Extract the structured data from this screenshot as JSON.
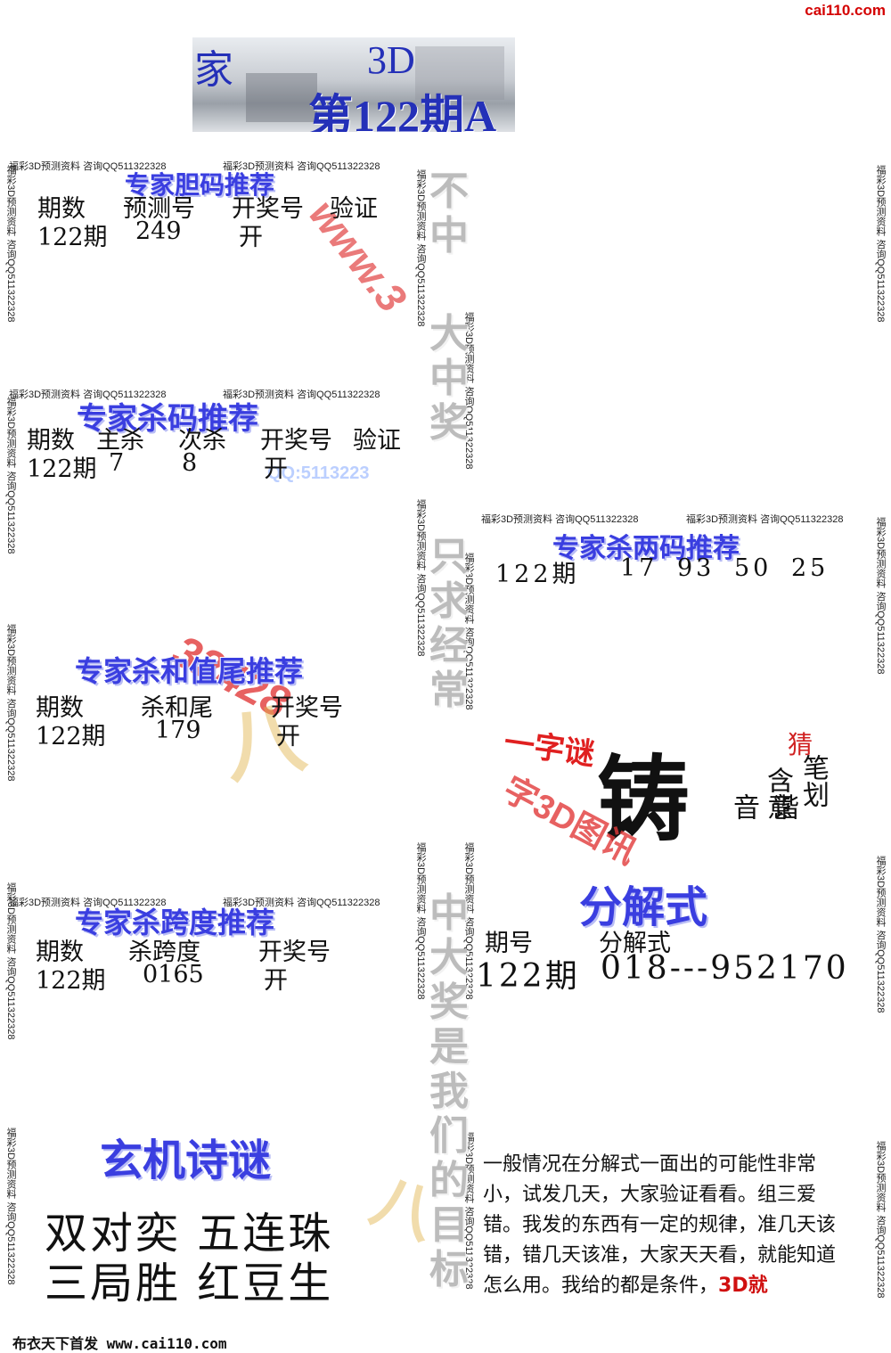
{
  "site": {
    "logo": "cai110.com"
  },
  "header": {
    "brand": "家",
    "product": "3D",
    "issue": "第122期A版"
  },
  "border_text": {
    "horizontal": "福彩3D预测资料 咨询QQ511322328",
    "vertical": "福彩3D预测资料 咨询QQ511322328"
  },
  "watermarks": {
    "url_fragment": "www.3",
    "qq_fragment": "QQ:5113223",
    "red_number": "32428"
  },
  "slogan": {
    "part1": "不中",
    "part2": "大中奖",
    "part3": "只求经常",
    "part4": "中大奖是我们的目标"
  },
  "bold_sections": {
    "title": "专家胆码推荐",
    "headers": [
      "期数",
      "预测号",
      "开奖号",
      "验证"
    ],
    "row": [
      "122期",
      "249",
      "开",
      ""
    ]
  },
  "kill_code": {
    "title": "专家杀码推荐",
    "headers": [
      "期数",
      "主杀",
      "次杀",
      "开奖号",
      "验证"
    ],
    "row": [
      "122期",
      "7",
      "8",
      "开",
      ""
    ]
  },
  "kill_two": {
    "title": "专家杀两码推荐",
    "issue": "122期",
    "codes": [
      "17",
      "93",
      "50",
      "25"
    ]
  },
  "kill_sum": {
    "title": "专家杀和值尾推荐",
    "headers": [
      "期数",
      "杀和尾",
      "开奖号"
    ],
    "row": [
      "122期",
      "179",
      "开"
    ]
  },
  "riddle": {
    "label": "一字谜",
    "char": "铸",
    "hint_guess": "猜",
    "hint_strokes": "笔划",
    "hint_meaning": "含意",
    "hint_homophone": "谐音",
    "red_caption": "字3D图讯"
  },
  "kill_span": {
    "title": "专家杀跨度推荐",
    "headers": [
      "期数",
      "杀跨度",
      "开奖号"
    ],
    "row": [
      "122期",
      "0165",
      "开"
    ]
  },
  "decomposition": {
    "title": "分解式",
    "headers": [
      "期号",
      "分解式"
    ],
    "issue": "122期",
    "value": "018---952170"
  },
  "poem": {
    "title": "玄机诗谜",
    "lines": [
      "双对奕  五连珠",
      "三局胜  红豆生"
    ]
  },
  "note": {
    "text": "一般情况在分解式一面出的可能性非常小，试发几天，大家验证看看。组三爱错。我发的东西有一定的规律，准几天该错，错几天该准，大家天天看，就能知道怎么用。我给的都是条件，",
    "tail": "3D就"
  },
  "footer": {
    "text": "布衣天下首发 www.cai110.com"
  },
  "colors": {
    "title_blue": "#3a3ee0",
    "accent_red": "#e02020",
    "logo_red": "#d40000"
  }
}
